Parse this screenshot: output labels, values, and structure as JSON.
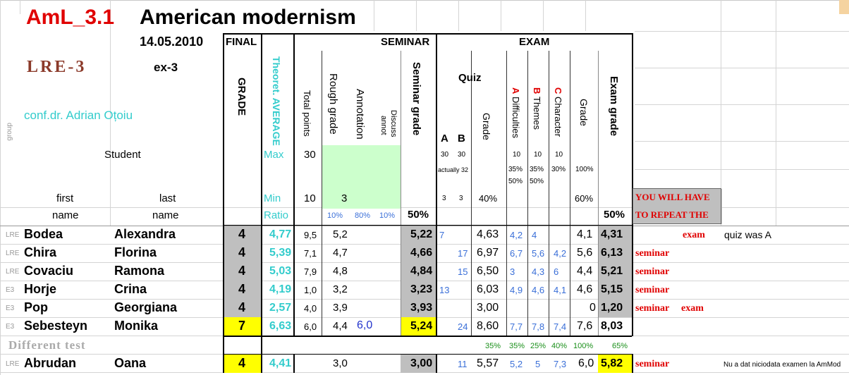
{
  "header": {
    "code": "AmL_3.1",
    "title": "American modernism",
    "date": "14.05.2010",
    "group_code": "LRE-3",
    "ex": "ex-3",
    "teacher": "conf.dr. Adrian Oțoiu",
    "group_label": "group",
    "student_label": "Student",
    "first_label1": "first",
    "first_label2": "name",
    "last_label1": "last",
    "last_label2": "name"
  },
  "columns": {
    "final": "FINAL",
    "grade": "GRADE",
    "theoret": "Theoret. AVERAGE",
    "seminar": "SEMINAR",
    "total_points": "Total points",
    "rough_grade": "Rough grade",
    "annotation": "Annotation",
    "discuss1": "Discuss",
    "discuss2": "annot",
    "seminar_grade": "Seminar grade",
    "exam": "EXAM",
    "quiz": "Quiz",
    "quiz_a": "A",
    "quiz_b": "B",
    "quiz_grade": "Grade",
    "difficulties_letter": "A",
    "difficulties": "Difficulties",
    "themes_letter": "B",
    "themes": "Themes",
    "character_letter": "C",
    "character": "Character",
    "exam_sub_grade": "Grade",
    "exam_grade": "Exam grade"
  },
  "params": {
    "max_label": "Max",
    "max_value": "30",
    "min_label": "Min",
    "min_value": "10",
    "min_rough": "3",
    "ratio_label": "Ratio",
    "ratio_rough": "10%",
    "ratio_annot": "80%",
    "ratio_disc": "10%",
    "seminar_pct": "50%",
    "quiz_a_max": "30",
    "quiz_b_max": "30",
    "quiz_actually": "actually 32",
    "quiz_a_min": "3",
    "quiz_b_min": "3",
    "quiz_pct": "40%",
    "diff_max": "10",
    "themes_max": "10",
    "char_max": "10",
    "diff_pct": "35%",
    "themes_pct": "35%",
    "char_pct": "30%",
    "diff_pct2": "50%",
    "themes_pct2": "50%",
    "grade_max": "100%",
    "grade_min": "60%",
    "exam_pct": "50%",
    "repeat_text1": "YOU WILL HAVE",
    "repeat_text2": "TO REPEAT THE"
  },
  "rows": [
    {
      "grp": "LRE",
      "first": "Bodea",
      "last": "Alexandra",
      "grade": "4",
      "avg": "4,77",
      "tp": "9,5",
      "rough": "5,2",
      "annot": "",
      "sem": "5,22",
      "qa": "7",
      "qb": "",
      "qg": "4,63",
      "d": "4,2",
      "t": "4",
      "ch": "",
      "eg": "4,1",
      "exam": "4,31",
      "r1": "",
      "r2": "exam",
      "note": "quiz was A"
    },
    {
      "grp": "LRE",
      "first": "Chira",
      "last": "Florina",
      "grade": "4",
      "avg": "5,39",
      "tp": "7,1",
      "rough": "4,7",
      "annot": "",
      "sem": "4,66",
      "qa": "",
      "qb": "17",
      "qg": "6,97",
      "d": "6,7",
      "t": "5,6",
      "ch": "4,2",
      "eg": "5,6",
      "exam": "6,13",
      "r1": "seminar",
      "r2": "",
      "note": ""
    },
    {
      "grp": "LRE",
      "first": "Covaciu",
      "last": "Ramona",
      "grade": "4",
      "avg": "5,03",
      "tp": "7,9",
      "rough": "4,8",
      "annot": "",
      "sem": "4,84",
      "qa": "",
      "qb": "15",
      "qg": "6,50",
      "d": "3",
      "t": "4,3",
      "ch": "6",
      "eg": "4,4",
      "exam": "5,21",
      "r1": "seminar",
      "r2": "",
      "note": ""
    },
    {
      "grp": "E3",
      "first": "Horje",
      "last": "Crina",
      "grade": "4",
      "avg": "4,19",
      "tp": "1,0",
      "rough": "3,2",
      "annot": "",
      "sem": "3,23",
      "qa": "13",
      "qb": "",
      "qg": "6,03",
      "d": "4,9",
      "t": "4,6",
      "ch": "4,1",
      "eg": "4,6",
      "exam": "5,15",
      "r1": "seminar",
      "r2": "",
      "note": ""
    },
    {
      "grp": "E3",
      "first": "Pop",
      "last": "Georgiana",
      "grade": "4",
      "avg": "2,57",
      "tp": "4,0",
      "rough": "3,9",
      "annot": "",
      "sem": "3,93",
      "qa": "",
      "qb": "",
      "qg": "3,00",
      "d": "",
      "t": "",
      "ch": "",
      "eg": "0",
      "exam": "1,20",
      "r1": "seminar",
      "r2": "exam",
      "note": ""
    },
    {
      "grp": "E3",
      "first": "Sebesteyn",
      "last": "Monika",
      "grade": "7",
      "avg": "6,63",
      "tp": "6,0",
      "rough": "4,4",
      "annot": "6,0",
      "sem": "5,24",
      "qa": "",
      "qb": "24",
      "qg": "8,60",
      "d": "7,7",
      "t": "7,8",
      "ch": "7,4",
      "eg": "7,6",
      "exam": "8,03",
      "r1": "",
      "r2": "",
      "note": ""
    }
  ],
  "different_test": {
    "label": "Different test",
    "pct1": "35%",
    "pct2": "35%",
    "pct3": "25%",
    "pct4": "40%",
    "pct5": "100%",
    "pct6": "65%"
  },
  "last_row": {
    "grp": "LRE",
    "first": "Abrudan",
    "last": "Oana",
    "grade": "4",
    "avg": "4,41",
    "rough": "3,0",
    "sem": "3,00",
    "qb": "11",
    "qg": "5,57",
    "d": "5,2",
    "t": "5",
    "ch": "7,3",
    "eg": "6,0",
    "exam": "5,82",
    "r1": "seminar",
    "note": "Nu a dat niciodata examen la AmMod"
  }
}
